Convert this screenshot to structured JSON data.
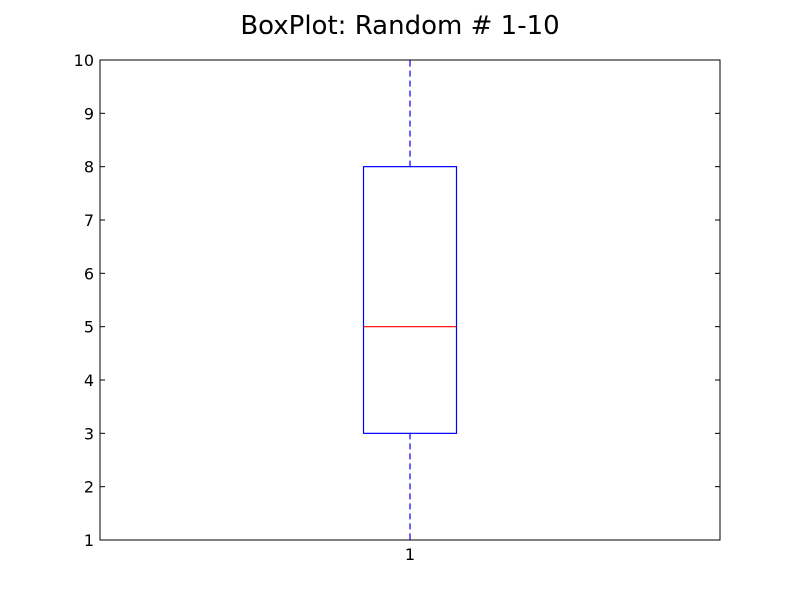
{
  "chart_data": {
    "type": "box",
    "title": "BoxPlot: Random # 1-10",
    "xlabel": "",
    "ylabel": "",
    "categories": [
      "1"
    ],
    "boxes": [
      {
        "category": "1",
        "whisker_low": 1,
        "q1": 3,
        "median": 5,
        "q3": 8,
        "whisker_high": 10
      }
    ],
    "ylim": [
      1,
      10
    ],
    "yticks": [
      1,
      2,
      3,
      4,
      5,
      6,
      7,
      8,
      9,
      10
    ],
    "grid": false,
    "colors": {
      "box": "#0000ff",
      "median": "#ff0000",
      "whisker": "#0000ff",
      "axes": "#000000"
    }
  }
}
